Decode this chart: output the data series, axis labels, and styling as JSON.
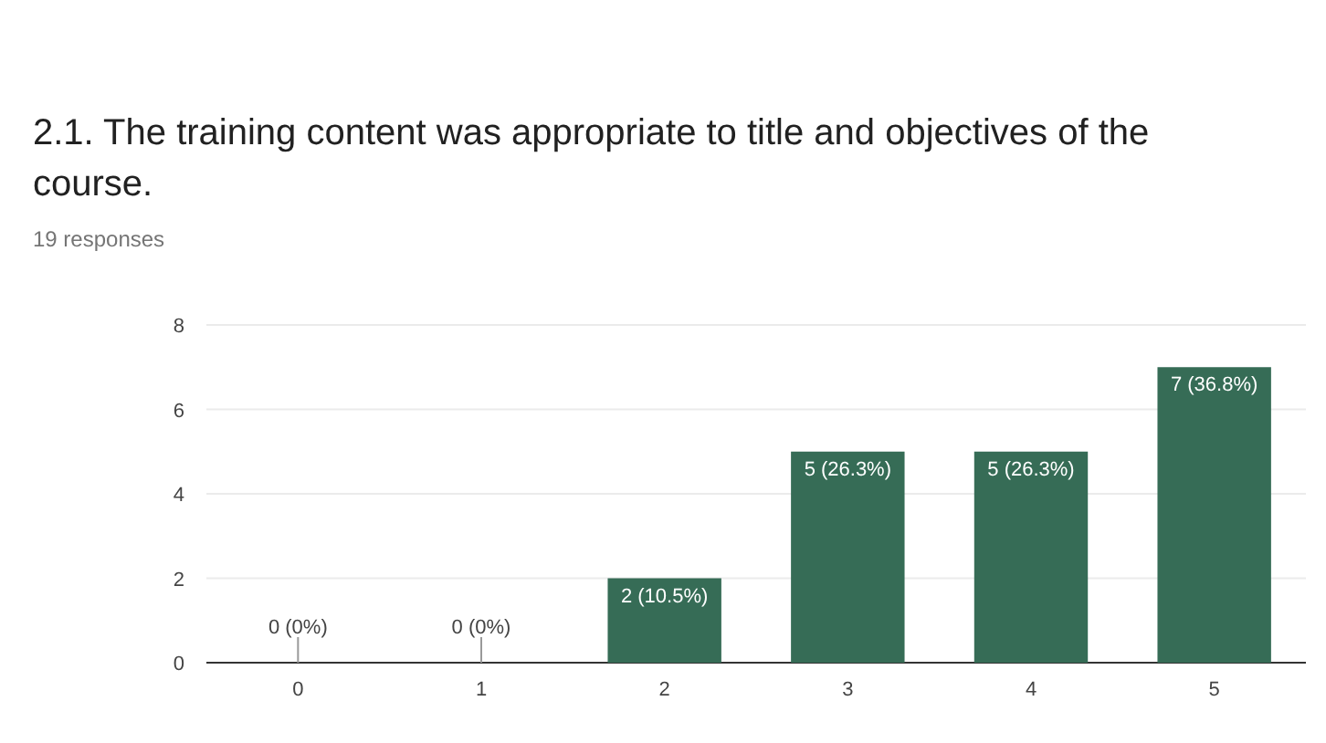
{
  "chart_data": {
    "type": "bar",
    "title": "2.1. The training content was appropriate to title and objectives of the course.",
    "subtitle": "19 responses",
    "categories": [
      "0",
      "1",
      "2",
      "3",
      "4",
      "5"
    ],
    "values": [
      0,
      0,
      2,
      5,
      5,
      7
    ],
    "value_labels": [
      "0 (0%)",
      "0 (0%)",
      "2 (10.5%)",
      "5 (26.3%)",
      "5 (26.3%)",
      "7 (36.8%)"
    ],
    "color": "#366c56",
    "ylim": [
      0,
      8
    ],
    "yticks": [
      0,
      2,
      4,
      6,
      8
    ],
    "grid": "y"
  }
}
